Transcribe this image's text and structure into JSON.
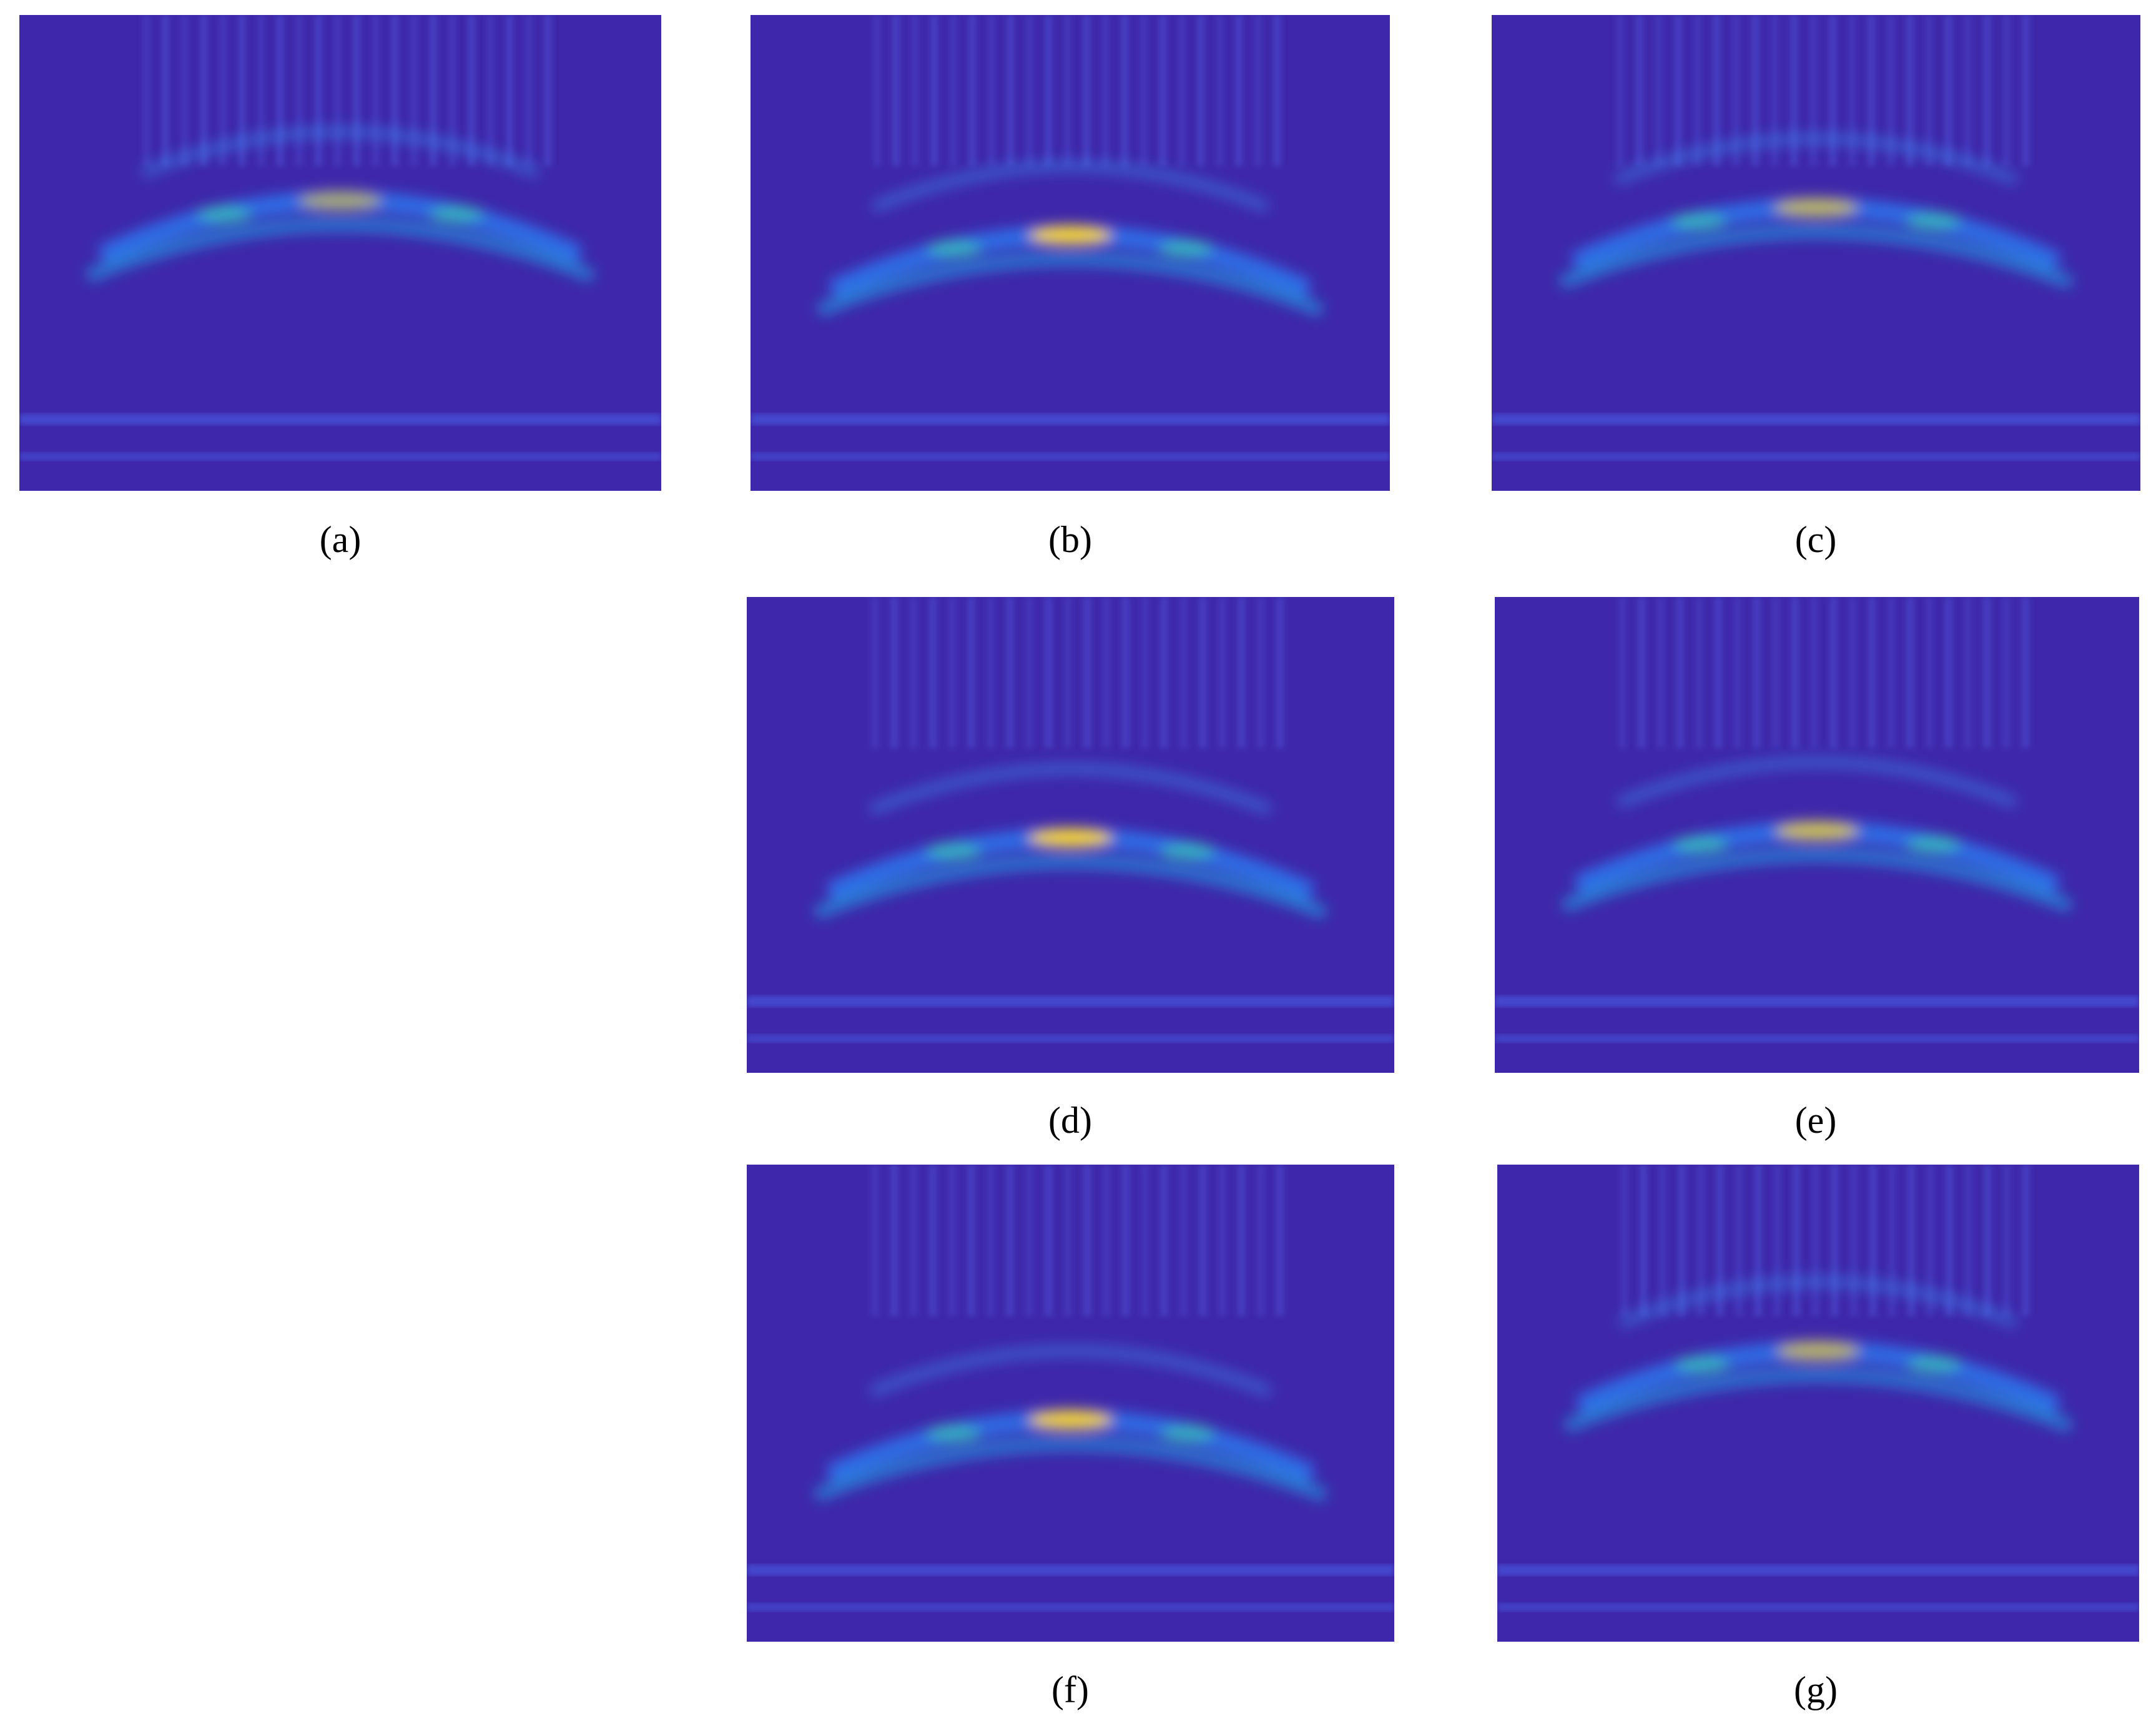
{
  "figure": {
    "panels": [
      {
        "label": "(a)"
      },
      {
        "label": "(b)"
      },
      {
        "label": "(c)"
      },
      {
        "label": "(d)"
      },
      {
        "label": "(e)"
      },
      {
        "label": "(f)"
      },
      {
        "label": "(g)"
      }
    ]
  }
}
